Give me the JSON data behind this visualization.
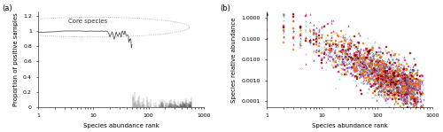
{
  "panel_a": {
    "title": "Core species",
    "xlabel": "Species abundance rank",
    "ylabel": "Proportion of positive samples",
    "xlim": [
      1,
      1000
    ],
    "ylim": [
      0,
      1.2
    ],
    "yticks": [
      0,
      0.2,
      0.4,
      0.6,
      0.8,
      1.0,
      1.2
    ],
    "xticks": [
      1,
      10,
      100,
      1000
    ],
    "line_color": "#555555",
    "ellipse_color": "#aaaaaa"
  },
  "panel_b": {
    "xlabel": "Species abundance rank",
    "ylabel": "Species relative abundance",
    "xlim": [
      1,
      1000
    ],
    "xticks": [
      1,
      10,
      100,
      1000
    ],
    "yticks": [
      0.0001,
      0.001,
      0.01,
      0.1,
      1.0
    ],
    "ylim": [
      5e-05,
      2.0
    ]
  },
  "colors": [
    "#E87D1E",
    "#4DC5F5",
    "#8B3A8B",
    "#8B0000",
    "#E74C3C",
    "#2ECC40",
    "#F4A020",
    "#00BFBF",
    "#3060D0",
    "#E91E90",
    "#606060",
    "#A0522D",
    "#FF6600",
    "#00CED1",
    "#9400D3"
  ],
  "markers": [
    "s",
    "+",
    "^",
    "s",
    "x",
    "+",
    "D",
    "x",
    "o",
    "s",
    "^",
    "+",
    "s",
    "x",
    "^"
  ],
  "background_color": "#ffffff",
  "label_fontsize": 5,
  "tick_fontsize": 4.5,
  "annotation_fontsize": 5
}
